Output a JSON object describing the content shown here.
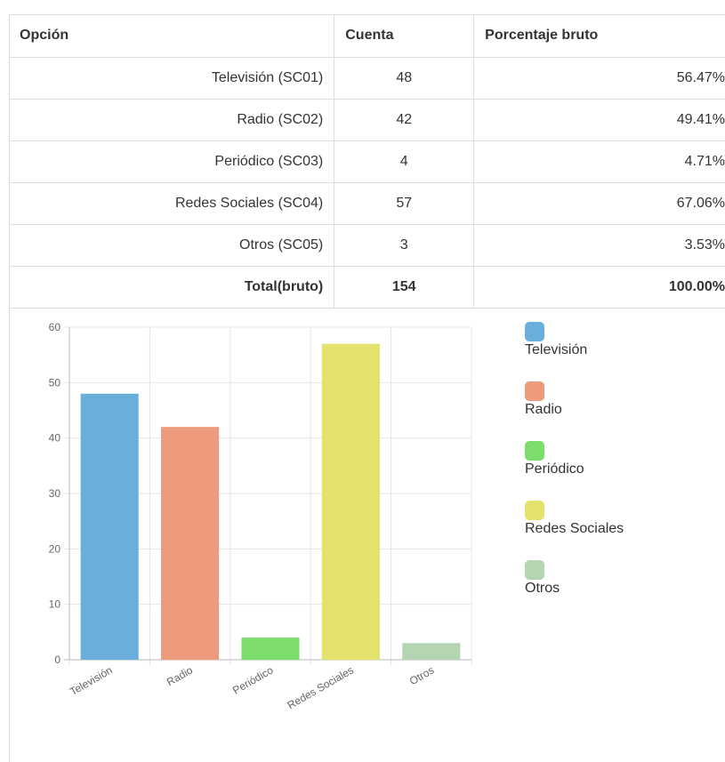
{
  "table": {
    "headers": [
      "Opción",
      "Cuenta",
      "Porcentaje bruto"
    ],
    "rows": [
      {
        "option": "Televisión (SC01)",
        "count": "48",
        "percent": "56.47%"
      },
      {
        "option": "Radio (SC02)",
        "count": "42",
        "percent": "49.41%"
      },
      {
        "option": "Periódico (SC03)",
        "count": "4",
        "percent": "4.71%"
      },
      {
        "option": "Redes Sociales (SC04)",
        "count": "57",
        "percent": "67.06%"
      },
      {
        "option": "Otros (SC05)",
        "count": "3",
        "percent": "3.53%"
      }
    ],
    "total": {
      "label": "Total(bruto)",
      "count": "154",
      "percent": "100.00%"
    }
  },
  "chart_data": {
    "type": "bar",
    "categories": [
      "Televisión",
      "Radio",
      "Periódico",
      "Redes Sociales",
      "Otros"
    ],
    "values": [
      48,
      42,
      4,
      57,
      3
    ],
    "colors": [
      "#6aaedb",
      "#ee9a7c",
      "#7ddd6c",
      "#e2e26c",
      "#b4d4b2"
    ],
    "ylim": [
      0,
      60
    ],
    "yticks": [
      0,
      10,
      20,
      30,
      40,
      50,
      60
    ],
    "grid": true,
    "legend_position": "right",
    "legend": [
      "Televisión",
      "Radio",
      "Periódico",
      "Redes Sociales",
      "Otros"
    ]
  }
}
